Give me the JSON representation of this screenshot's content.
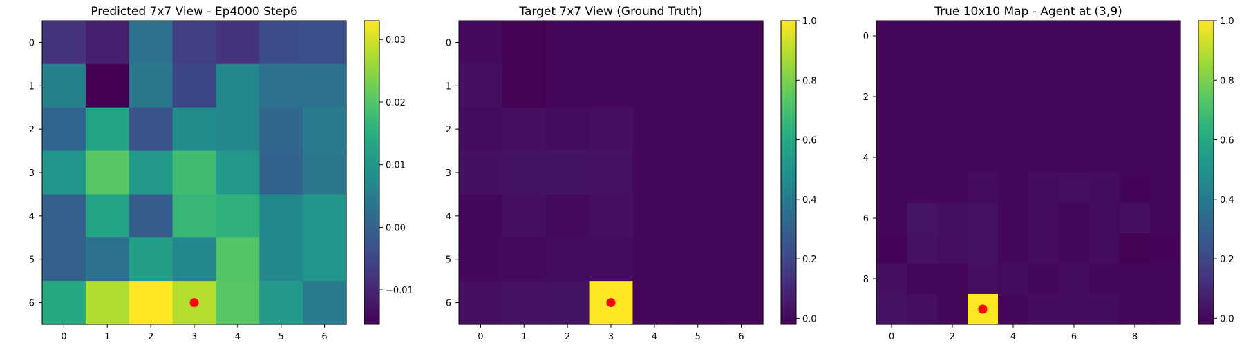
{
  "chart_data": [
    {
      "type": "heatmap",
      "title": "Predicted 7x7 View - Ep4000 Step6",
      "rows": 7,
      "cols": 7,
      "x_ticks": [
        0,
        1,
        2,
        3,
        4,
        5,
        6
      ],
      "y_ticks": [
        0,
        1,
        2,
        3,
        4,
        5,
        6
      ],
      "colormap": "viridis",
      "vmin": -0.0155,
      "vmax": 0.033,
      "colorbar_ticks": [
        -0.01,
        0.0,
        0.01,
        0.02,
        0.03
      ],
      "colorbar_labels": [
        "−0.01",
        "0.00",
        "0.01",
        "0.02",
        "0.03"
      ],
      "values": [
        [
          -0.008,
          -0.011,
          0.003,
          -0.006,
          -0.008,
          -0.004,
          -0.0035
        ],
        [
          0.006,
          -0.0155,
          0.004,
          -0.005,
          0.007,
          0.003,
          0.003
        ],
        [
          0.0005,
          0.013,
          -0.003,
          0.008,
          0.007,
          0.001,
          0.005
        ],
        [
          0.01,
          0.0205,
          0.011,
          0.018,
          0.011,
          0.0,
          0.004
        ],
        [
          -0.0005,
          0.013,
          -0.001,
          0.017,
          0.016,
          0.007,
          0.01
        ],
        [
          -0.0005,
          0.003,
          0.012,
          0.007,
          0.02,
          0.007,
          0.01
        ],
        [
          0.014,
          0.0275,
          0.033,
          0.028,
          0.0205,
          0.011,
          0.005
        ]
      ],
      "marker": {
        "x": 3,
        "y": 6,
        "color": "#ff0000"
      }
    },
    {
      "type": "heatmap",
      "title": "Target 7x7 View (Ground Truth)",
      "rows": 7,
      "cols": 7,
      "x_ticks": [
        0,
        1,
        2,
        3,
        4,
        5,
        6
      ],
      "y_ticks": [
        0,
        1,
        2,
        3,
        4,
        5,
        6
      ],
      "colormap": "viridis",
      "vmin": -0.02,
      "vmax": 1.0,
      "colorbar_ticks": [
        0.0,
        0.2,
        0.4,
        0.6,
        0.8,
        1.0
      ],
      "colorbar_labels": [
        "0.0",
        "0.2",
        "0.4",
        "0.6",
        "0.8",
        "1.0"
      ],
      "values": [
        [
          0.005,
          -0.015,
          0.0,
          0.0,
          0.0,
          0.0,
          0.0
        ],
        [
          0.02,
          -0.015,
          0.0,
          0.0,
          0.0,
          0.0,
          0.0
        ],
        [
          0.01,
          0.02,
          0.01,
          0.02,
          0.0,
          0.0,
          0.0
        ],
        [
          0.025,
          0.035,
          0.035,
          0.03,
          0.0,
          0.0,
          0.0
        ],
        [
          0.0,
          0.02,
          0.005,
          0.02,
          0.0,
          0.0,
          0.0
        ],
        [
          0.0,
          0.005,
          0.015,
          0.01,
          0.0,
          0.0,
          0.0
        ],
        [
          0.02,
          0.03,
          0.035,
          1.0,
          0.0,
          0.0,
          0.0
        ]
      ],
      "marker": {
        "x": 3,
        "y": 6,
        "color": "#ff0000"
      }
    },
    {
      "type": "heatmap",
      "title": "True 10x10 Map - Agent at (3,9)",
      "rows": 10,
      "cols": 10,
      "x_ticks": [
        0,
        2,
        4,
        6,
        8
      ],
      "y_ticks": [
        0,
        2,
        4,
        6,
        8
      ],
      "colormap": "viridis",
      "vmin": -0.02,
      "vmax": 1.0,
      "colorbar_ticks": [
        0.0,
        0.2,
        0.4,
        0.6,
        0.8,
        1.0
      ],
      "colorbar_labels": [
        "0.0",
        "0.2",
        "0.4",
        "0.6",
        "0.8",
        "1.0"
      ],
      "values": [
        [
          0,
          0,
          0,
          0,
          0,
          0,
          0,
          0,
          0,
          0
        ],
        [
          0,
          0,
          0,
          0,
          0,
          0,
          0,
          0,
          0,
          0
        ],
        [
          0,
          0,
          0,
          0,
          0,
          0,
          0,
          0,
          0,
          0
        ],
        [
          0,
          0,
          0,
          0,
          0,
          0,
          0,
          0,
          0,
          0
        ],
        [
          0,
          0,
          0,
          0,
          0,
          0,
          0,
          0,
          0,
          0
        ],
        [
          0,
          0,
          0,
          0.01,
          0.0,
          0.01,
          0.02,
          0.01,
          -0.01,
          0.0
        ],
        [
          0,
          0.04,
          0.025,
          0.03,
          0.0,
          0.01,
          0.0,
          0.01,
          0.02,
          0.0
        ],
        [
          -0.01,
          0.03,
          0.02,
          0.03,
          0.0,
          0.01,
          0.0,
          0.01,
          -0.015,
          -0.01
        ],
        [
          0.02,
          0.0,
          0.0,
          0.02,
          0.01,
          0.0,
          0.01,
          0.0,
          0.0,
          0.0
        ],
        [
          0.03,
          0.02,
          0.0,
          1.0,
          0.0,
          0.01,
          0.01,
          0.01,
          0.0,
          0.0
        ]
      ],
      "marker": {
        "x": 3,
        "y": 9,
        "color": "#ff0000"
      }
    }
  ]
}
